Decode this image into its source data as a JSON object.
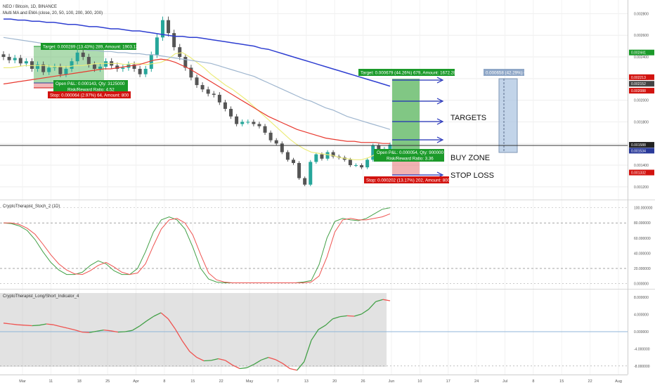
{
  "header": {
    "symbol_line": "NEO / Bitcoin, 1D, BINANCE",
    "indicator_line": "Multi MA and EMA (close, 20, 50, 100, 200, 300, 200)"
  },
  "price_axis": {
    "ticks": [
      "0.002800",
      "0.002600",
      "0.002400",
      "0.002200",
      "0.002000",
      "0.001800",
      "0.001600",
      "0.001400",
      "0.001200"
    ],
    "tags": [
      {
        "label": "0.002441",
        "price": 0.002441,
        "color": "#1b9a2a"
      },
      {
        "label": "0.002213",
        "price": 0.002213,
        "color": "#d2130f"
      },
      {
        "label": "0.002152",
        "price": 0.002152,
        "color": "#444444"
      },
      {
        "label": "0.002088",
        "price": 0.002088,
        "color": "#d2130f"
      },
      {
        "label": "0.001588",
        "price": 0.001588,
        "color": "#222222"
      },
      {
        "label": "0.001534",
        "price": 0.001534,
        "color": "#2a3a9a"
      },
      {
        "label": "0.001332",
        "price": 0.001332,
        "color": "#d2130f"
      }
    ]
  },
  "time_axis": {
    "labels": [
      "Mar",
      "11",
      "18",
      "25",
      "Apr",
      "8",
      "15",
      "22",
      "May",
      "7",
      "13",
      "20",
      "26",
      "Jun",
      "10",
      "17",
      "24",
      "Jul",
      "8",
      "15",
      "22",
      "Aug"
    ]
  },
  "trade_1": {
    "target": "Target: 0.000289 (13.43%) 289, Amount: 1903.13",
    "open_pnl": "Open P&L: 0.000143, Qty: 3125000",
    "risk_reward": "Risk/Reward Ratio: 4.52",
    "stop": "Stop: 0.000064 (2.97%) 64, Amount: 800"
  },
  "trade_2": {
    "target": "Target: 0.000679 (44.26%) 679, Amount: 1672.28",
    "open_pnl": "Open P&L: 0.000054, Qty: 900000",
    "risk_reward": "Risk/Reward Ratio: 3.36",
    "stop": "Stop: 0.000202 (13.17%) 202, Amount: 800"
  },
  "measure_label": "0.000658 (42.29%) 658",
  "annotations": {
    "targets": "TARGETS",
    "buy_zone": "BUY ZONE",
    "stop_loss": "STOP LOSS"
  },
  "stoch": {
    "title": "CryptoTherapist_Stoch_2 (1D)",
    "ticks": [
      "100.000000",
      "80.000000",
      "60.000000",
      "40.000000",
      "20.000000",
      "0.000000"
    ]
  },
  "longshort": {
    "title": "CryptoTherapist_Long/Short_Indicator_4",
    "ticks": [
      "8.000000",
      "4.000000",
      "0.000000",
      "-4.000000",
      "-8.000000"
    ]
  },
  "colors": {
    "up": "#26a69a",
    "down": "#555555",
    "ma_yellow": "#ecec7a",
    "ema_red": "#e8392f",
    "ma_blue": "#2f3fd1",
    "ma_lightblue": "#9fb6cf",
    "profit_zone": "#4caf50",
    "loss_zone": "#e57373",
    "measure_zone": "#aec6e2",
    "stoch_green": "#43a047",
    "stoch_red": "#ef5350"
  },
  "chart_data": [
    {
      "type": "candlestick",
      "title": "NEO / Bitcoin, 1D, BINANCE",
      "ylim": [
        0.00116,
        0.0029
      ],
      "price_levels": {
        "current": 0.001588,
        "entry_2": 0.001534,
        "target_2": 0.002213,
        "stop_2": 0.001332,
        "target_1": 0.002441,
        "entry_1": 0.002152,
        "stop_1": 0.002088
      },
      "candle_closes": [
        0.0024,
        0.00237,
        0.00239,
        0.00234,
        0.00236,
        0.00229,
        0.00233,
        0.00226,
        0.0023,
        0.00231,
        0.00224,
        0.00229,
        0.00236,
        0.00244,
        0.0024,
        0.00233,
        0.00229,
        0.00231,
        0.00236,
        0.00232,
        0.00229,
        0.0023,
        0.00233,
        0.00229,
        0.00224,
        0.00229,
        0.00242,
        0.00258,
        0.00274,
        0.00262,
        0.00249,
        0.0024,
        0.0023,
        0.00221,
        0.00214,
        0.0021,
        0.00206,
        0.00205,
        0.00198,
        0.00192,
        0.00185,
        0.00178,
        0.0018,
        0.0018,
        0.00178,
        0.00176,
        0.0017,
        0.00163,
        0.0016,
        0.00152,
        0.00145,
        0.00142,
        0.00128,
        0.00122,
        0.00143,
        0.0015,
        0.00146,
        0.00152,
        0.00148,
        0.00147,
        0.00145,
        0.0014,
        0.0014,
        0.00138,
        0.00145,
        0.00158,
        0.0015,
        0.00155,
        0.00159
      ],
      "series": [
        {
          "name": "MA 20",
          "values": [
            0.0023,
            0.0023,
            0.00231,
            0.00232,
            0.00232,
            0.00232,
            0.00232,
            0.00231,
            0.00231,
            0.00231,
            0.00232,
            0.00232,
            0.00233,
            0.00234,
            0.00234,
            0.00234,
            0.00234,
            0.00233,
            0.00234,
            0.00234,
            0.00233,
            0.00234,
            0.00235,
            0.00238,
            0.00243,
            0.00244,
            0.0024,
            0.00235,
            0.0023,
            0.00224,
            0.00219,
            0.00214,
            0.0021,
            0.00205,
            0.002,
            0.00194,
            0.00188,
            0.00182,
            0.00176,
            0.0017,
            0.00164,
            0.00159,
            0.00155,
            0.00152,
            0.00151,
            0.0015,
            0.00149,
            0.00147,
            0.00146,
            0.00145,
            0.00145,
            0.00147,
            0.0015,
            0.00152,
            0.00153
          ]
        },
        {
          "name": "EMA 50",
          "values": [
            0.00215,
            0.00216,
            0.00217,
            0.00218,
            0.00219,
            0.0022,
            0.00221,
            0.00222,
            0.00223,
            0.00224,
            0.00225,
            0.00226,
            0.00227,
            0.00228,
            0.00229,
            0.00229,
            0.0023,
            0.00231,
            0.00232,
            0.00233,
            0.00235,
            0.00237,
            0.00238,
            0.00237,
            0.00235,
            0.00232,
            0.00229,
            0.00225,
            0.00221,
            0.00217,
            0.00213,
            0.00209,
            0.00205,
            0.00201,
            0.00197,
            0.00193,
            0.00189,
            0.00185,
            0.00182,
            0.00179,
            0.00176,
            0.00173,
            0.00171,
            0.00169,
            0.00167,
            0.00165,
            0.00164,
            0.00163,
            0.00162,
            0.00162,
            0.00161,
            0.00161,
            0.00161,
            0.0016,
            0.0016
          ]
        },
        {
          "name": "MA 100",
          "values": [
            0.00258,
            0.00257,
            0.00256,
            0.00255,
            0.00254,
            0.00253,
            0.00252,
            0.00251,
            0.0025,
            0.00249,
            0.00248,
            0.00247,
            0.00246,
            0.00246,
            0.00245,
            0.00245,
            0.00244,
            0.00244,
            0.00243,
            0.00243,
            0.00242,
            0.00242,
            0.00241,
            0.0024,
            0.00239,
            0.00238,
            0.00237,
            0.00236,
            0.00235,
            0.00234,
            0.00232,
            0.0023,
            0.00228,
            0.00226,
            0.00224,
            0.00222,
            0.00219,
            0.00216,
            0.00213,
            0.0021,
            0.00207,
            0.00204,
            0.00201,
            0.00199,
            0.00196,
            0.00193,
            0.00191,
            0.00188,
            0.00185,
            0.00183,
            0.00181,
            0.00179,
            0.00177,
            0.00175,
            0.00173
          ]
        },
        {
          "name": "MA 200",
          "values": [
            0.00275,
            0.00275,
            0.00274,
            0.00274,
            0.00273,
            0.00273,
            0.00272,
            0.00272,
            0.00271,
            0.0027,
            0.0027,
            0.00269,
            0.00268,
            0.00268,
            0.00267,
            0.00266,
            0.00266,
            0.00265,
            0.00264,
            0.00264,
            0.00263,
            0.00262,
            0.00261,
            0.0026,
            0.00259,
            0.00259,
            0.00258,
            0.00258,
            0.00257,
            0.00256,
            0.00255,
            0.00254,
            0.00253,
            0.00252,
            0.00251,
            0.0025,
            0.00248,
            0.00247,
            0.00245,
            0.00243,
            0.00241,
            0.00239,
            0.00237,
            0.00235,
            0.00233,
            0.00231,
            0.00229,
            0.00227,
            0.00225,
            0.00223,
            0.00221,
            0.00219,
            0.00217,
            0.00215,
            0.00213
          ]
        }
      ]
    },
    {
      "type": "line",
      "title": "CryptoTherapist_Stoch_2 (1D)",
      "ylim": [
        -5,
        108
      ],
      "series": [
        {
          "name": "K",
          "values": [
            80,
            79,
            76,
            70,
            58,
            42,
            28,
            18,
            12,
            12,
            15,
            24,
            30,
            26,
            17,
            12,
            12,
            20,
            42,
            68,
            84,
            88,
            84,
            72,
            48,
            20,
            6,
            2,
            1,
            1,
            1,
            1,
            1,
            1,
            1,
            1,
            1,
            1,
            2,
            4,
            25,
            60,
            82,
            86,
            84,
            83,
            86,
            92,
            98,
            100
          ]
        },
        {
          "name": "D",
          "values": [
            80,
            80,
            78,
            73,
            65,
            52,
            38,
            26,
            18,
            13,
            12,
            17,
            24,
            28,
            22,
            15,
            12,
            14,
            26,
            50,
            72,
            84,
            86,
            80,
            64,
            38,
            14,
            5,
            2,
            1,
            1,
            1,
            1,
            1,
            1,
            1,
            1,
            1,
            1,
            2,
            10,
            35,
            68,
            84,
            86,
            84,
            84,
            86,
            88,
            92
          ]
        }
      ]
    },
    {
      "type": "line",
      "title": "CryptoTherapist_Long/Short_Indicator_4",
      "ylim": [
        -9.5,
        9.5
      ],
      "series": [
        {
          "name": "Long/Short",
          "values": [
            2.0,
            1.8,
            1.6,
            1.5,
            1.4,
            1.5,
            1.8,
            1.6,
            1.2,
            0.8,
            0.4,
            -0.1,
            -0.2,
            0.1,
            0.4,
            0.2,
            -0.1,
            0.0,
            0.3,
            1.3,
            2.5,
            3.6,
            4.4,
            3.0,
            0.6,
            -2.2,
            -4.6,
            -6.0,
            -6.8,
            -6.7,
            -6.3,
            -6.7,
            -7.8,
            -8.6,
            -8.4,
            -7.6,
            -6.6,
            -6.0,
            -6.5,
            -7.4,
            -8.6,
            -9.0,
            -7.0,
            -2.0,
            0.5,
            1.5,
            3.0,
            3.5,
            3.7,
            3.6,
            4.1,
            5.2,
            7.0,
            7.5,
            7.2
          ]
        }
      ]
    }
  ]
}
